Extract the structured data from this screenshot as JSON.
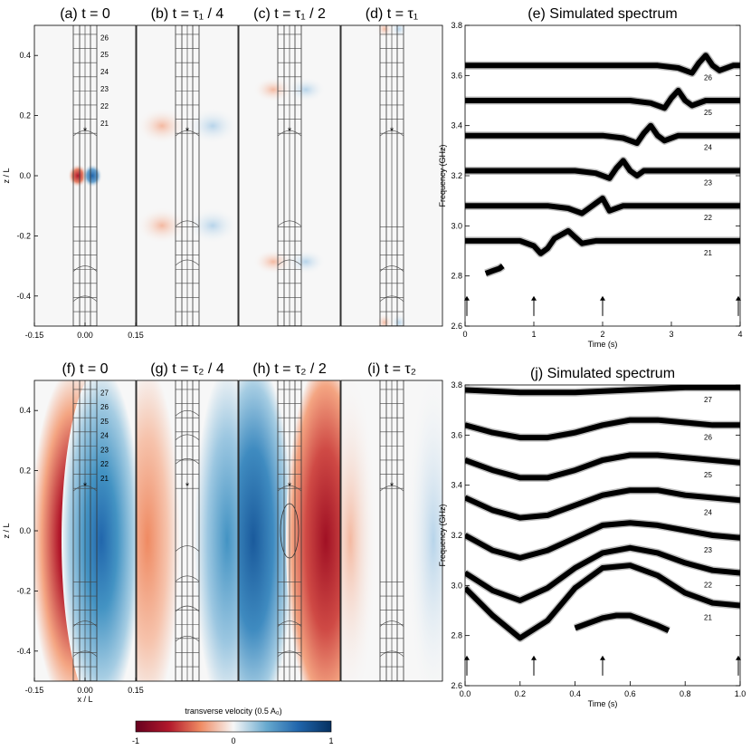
{
  "row1": {
    "titles": [
      "(a) t = 0",
      "(b) t = τ₁ / 4",
      "(c) t = τ₁ / 2",
      "(d) t = τ₁"
    ],
    "ylabel": "z / L",
    "x_ticks": [
      "-0.15",
      "0.00",
      "0.15"
    ],
    "y_ticks": [
      "0.4",
      "0.2",
      "0.0",
      "-0.2",
      "-0.4"
    ],
    "mode_labels": [
      "26",
      "25",
      "24",
      "23",
      "22",
      "21"
    ]
  },
  "row2": {
    "titles": [
      "(f) t = 0",
      "(g) t = τ₂ / 4",
      "(h) t = τ₂ / 2",
      "(i) t = τ₂"
    ],
    "xlabel": "x / L",
    "ylabel": "z / L",
    "x_ticks": [
      "-0.15",
      "0.00",
      "0.15"
    ],
    "y_ticks": [
      "0.4",
      "0.2",
      "0.0",
      "-0.2",
      "-0.4"
    ],
    "mode_labels": [
      "27",
      "26",
      "25",
      "24",
      "23",
      "22",
      "21"
    ]
  },
  "colorbar": {
    "label": "transverse velocity (0.5 A₀)",
    "ticks": [
      "-1",
      "0",
      "1"
    ],
    "colors": [
      "#67001f",
      "#b2182b",
      "#ef8a62",
      "#f7f7f7",
      "#67a9cf",
      "#2166ac",
      "#053061"
    ]
  },
  "chart_data": [
    {
      "type": "line",
      "title": "(e) Simulated spectrum",
      "xlabel": "Time (s)",
      "ylabel": "Frequency (GHz)",
      "xlim": [
        0,
        4
      ],
      "ylim": [
        2.6,
        3.8
      ],
      "x_ticks": [
        "0",
        "1",
        "2",
        "3",
        "4"
      ],
      "y_ticks": [
        "3.8",
        "3.6",
        "3.4",
        "3.2",
        "3.0",
        "2.8",
        "2.6"
      ],
      "arrows_at_time": [
        0,
        1,
        2,
        4
      ],
      "series": [
        {
          "name": "21",
          "x": [
            0,
            0.6,
            0.8,
            1.0,
            1.1,
            1.2,
            1.3,
            1.5,
            1.7,
            1.9,
            2.3,
            3,
            4
          ],
          "y": [
            2.94,
            2.94,
            2.94,
            2.92,
            2.89,
            2.91,
            2.95,
            2.98,
            2.93,
            2.94,
            2.94,
            2.94,
            2.94
          ]
        },
        {
          "name": "22",
          "x": [
            0,
            1.2,
            1.5,
            1.7,
            1.8,
            1.9,
            2.0,
            2.1,
            2.3,
            2.5,
            3,
            4
          ],
          "y": [
            3.08,
            3.08,
            3.07,
            3.05,
            3.07,
            3.09,
            3.11,
            3.06,
            3.08,
            3.08,
            3.08,
            3.08
          ]
        },
        {
          "name": "23",
          "x": [
            0,
            1.6,
            1.9,
            2.1,
            2.2,
            2.3,
            2.4,
            2.5,
            2.6,
            2.8,
            3,
            4
          ],
          "y": [
            3.22,
            3.22,
            3.21,
            3.19,
            3.23,
            3.26,
            3.22,
            3.2,
            3.22,
            3.22,
            3.22,
            3.22
          ]
        },
        {
          "name": "24",
          "x": [
            0,
            2.0,
            2.3,
            2.5,
            2.6,
            2.7,
            2.8,
            2.9,
            3.1,
            3.3,
            4
          ],
          "y": [
            3.36,
            3.36,
            3.35,
            3.33,
            3.37,
            3.4,
            3.36,
            3.34,
            3.36,
            3.36,
            3.36
          ]
        },
        {
          "name": "25",
          "x": [
            0,
            2.4,
            2.7,
            2.9,
            3.0,
            3.1,
            3.2,
            3.3,
            3.5,
            3.7,
            4
          ],
          "y": [
            3.5,
            3.5,
            3.49,
            3.47,
            3.51,
            3.54,
            3.5,
            3.48,
            3.5,
            3.5,
            3.5
          ]
        },
        {
          "name": "26",
          "x": [
            0,
            2.8,
            3.1,
            3.3,
            3.4,
            3.5,
            3.6,
            3.7,
            3.9,
            4
          ],
          "y": [
            3.64,
            3.64,
            3.63,
            3.61,
            3.65,
            3.68,
            3.64,
            3.62,
            3.64,
            3.64
          ]
        },
        {
          "name": "",
          "x": [
            0.3,
            0.4,
            0.5,
            0.55
          ],
          "y": [
            2.81,
            2.82,
            2.83,
            2.84
          ]
        }
      ]
    },
    {
      "type": "line",
      "title": "(j) Simulated spectrum",
      "xlabel": "Time (s)",
      "ylabel": "Frequency (GHz)",
      "xlim": [
        0,
        1
      ],
      "ylim": [
        2.6,
        3.8
      ],
      "x_ticks": [
        "0.0",
        "0.2",
        "0.4",
        "0.6",
        "0.8",
        "1.0"
      ],
      "y_ticks": [
        "3.8",
        "3.6",
        "3.4",
        "3.2",
        "3.0",
        "2.8",
        "2.6"
      ],
      "arrows_at_time": [
        0,
        0.25,
        0.5,
        1.0
      ],
      "series": [
        {
          "name": "21",
          "x": [
            0,
            0.1,
            0.2,
            0.3,
            0.4,
            0.5,
            0.6,
            0.7,
            0.8,
            0.9,
            1.0
          ],
          "y": [
            2.99,
            2.88,
            2.79,
            2.86,
            2.99,
            3.07,
            3.08,
            3.04,
            2.97,
            2.93,
            2.92
          ]
        },
        {
          "name": "22",
          "x": [
            0,
            0.1,
            0.2,
            0.3,
            0.4,
            0.5,
            0.6,
            0.7,
            0.8,
            0.9,
            1.0
          ],
          "y": [
            3.05,
            2.98,
            2.94,
            2.99,
            3.07,
            3.13,
            3.15,
            3.13,
            3.09,
            3.06,
            3.05
          ]
        },
        {
          "name": "23",
          "x": [
            0,
            0.1,
            0.2,
            0.3,
            0.4,
            0.5,
            0.6,
            0.7,
            0.8,
            0.9,
            1.0
          ],
          "y": [
            3.2,
            3.14,
            3.11,
            3.14,
            3.19,
            3.24,
            3.25,
            3.24,
            3.22,
            3.2,
            3.19
          ]
        },
        {
          "name": "24",
          "x": [
            0,
            0.1,
            0.2,
            0.3,
            0.4,
            0.5,
            0.6,
            0.7,
            0.8,
            0.9,
            1.0
          ],
          "y": [
            3.35,
            3.3,
            3.27,
            3.28,
            3.32,
            3.36,
            3.38,
            3.38,
            3.36,
            3.35,
            3.34
          ]
        },
        {
          "name": "25",
          "x": [
            0,
            0.1,
            0.2,
            0.3,
            0.4,
            0.5,
            0.6,
            0.7,
            0.8,
            0.9,
            1.0
          ],
          "y": [
            3.5,
            3.46,
            3.43,
            3.43,
            3.46,
            3.5,
            3.52,
            3.52,
            3.51,
            3.5,
            3.49
          ]
        },
        {
          "name": "26",
          "x": [
            0,
            0.1,
            0.2,
            0.3,
            0.4,
            0.5,
            0.6,
            0.7,
            0.8,
            0.9,
            1.0
          ],
          "y": [
            3.64,
            3.61,
            3.59,
            3.59,
            3.61,
            3.64,
            3.66,
            3.66,
            3.65,
            3.64,
            3.64
          ]
        },
        {
          "name": "27",
          "x": [
            0,
            0.2,
            0.4,
            0.6,
            0.8,
            1.0
          ],
          "y": [
            3.78,
            3.77,
            3.77,
            3.78,
            3.79,
            3.79
          ]
        },
        {
          "name": "",
          "x": [
            0.4,
            0.45,
            0.5,
            0.55,
            0.6,
            0.65,
            0.7,
            0.74
          ],
          "y": [
            2.83,
            2.85,
            2.87,
            2.88,
            2.88,
            2.86,
            2.84,
            2.82
          ]
        }
      ]
    }
  ]
}
